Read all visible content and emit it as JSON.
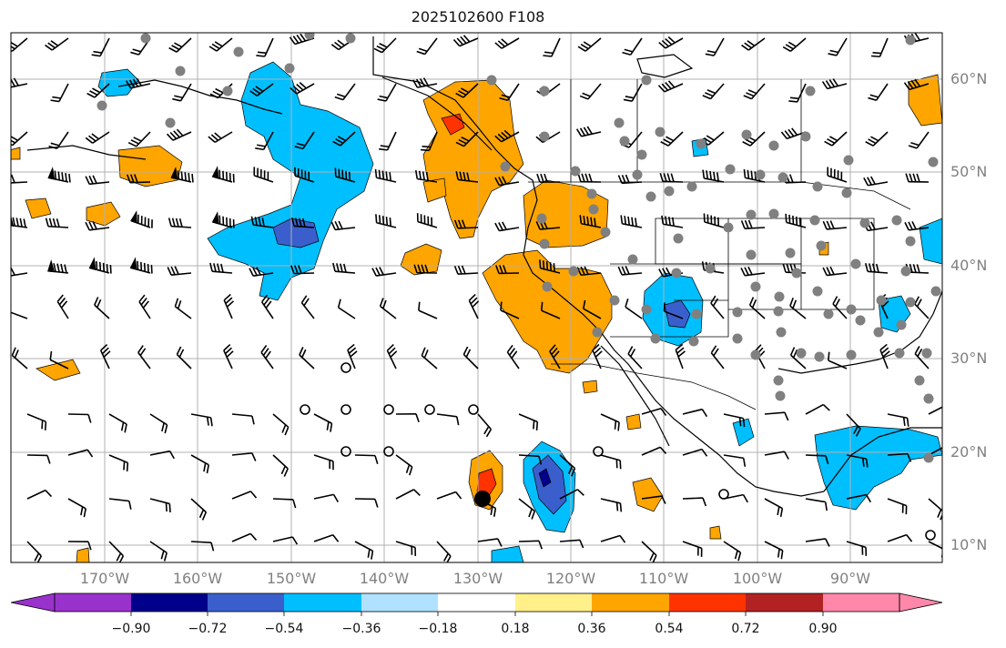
{
  "title": "2025102600 F108",
  "lat_labels": [
    "60°N",
    "50°N",
    "40°N",
    "30°N",
    "20°N",
    "10°N"
  ],
  "lon_labels": [
    "170°W",
    "160°W",
    "150°W",
    "140°W",
    "130°W",
    "120°W",
    "110°W",
    "100°W",
    "90°W"
  ],
  "colorbar": {
    "ticks": [
      "−0.90",
      "−0.72",
      "−0.54",
      "−0.36",
      "−0.18",
      "0.18",
      "0.36",
      "0.54",
      "0.72",
      "0.90"
    ],
    "colors": [
      "#9932cc",
      "#00008b",
      "#3a5fcd",
      "#00bfff",
      "#b0e2ff",
      "#ffffff",
      "#fff08a",
      "#ffa500",
      "#ff3300",
      "#b22222",
      "#ff88aa"
    ]
  },
  "fill_colors": {
    "neg_036": "#00bfff",
    "neg_054": "#3a5fcd",
    "neg_072": "#00008b",
    "pos_036": "#ffa500",
    "pos_054": "#ff3300"
  },
  "markers": {
    "station_color": "#808080",
    "storm_center_color": "#000000"
  }
}
